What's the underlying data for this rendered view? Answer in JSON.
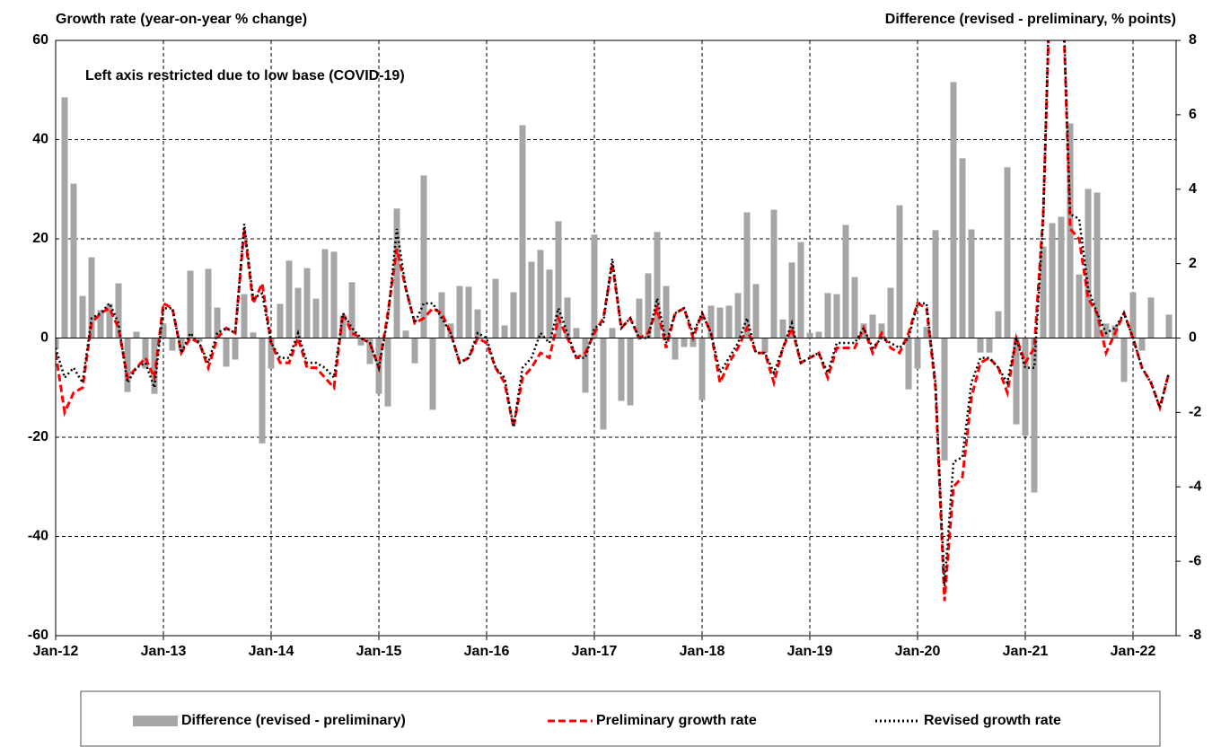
{
  "chart_data": {
    "type": "bar_line",
    "y_title": "Growth rate (year-on-year % change)",
    "y2_title": "Difference (revised - preliminary, % points)",
    "annotation": "Left axis restricted due to low base (COVID-19)",
    "categories": [
      "Jan-12",
      null,
      null,
      null,
      null,
      null,
      null,
      null,
      null,
      null,
      null,
      null,
      "Jan-13",
      null,
      null,
      null,
      null,
      null,
      null,
      null,
      null,
      null,
      null,
      null,
      "Jan-14",
      null,
      null,
      null,
      null,
      null,
      null,
      null,
      null,
      null,
      null,
      null,
      "Jan-15",
      null,
      null,
      null,
      null,
      null,
      null,
      null,
      null,
      null,
      null,
      null,
      "Jan-16",
      null,
      null,
      null,
      null,
      null,
      null,
      null,
      null,
      null,
      null,
      null,
      "Jan-17",
      null,
      null,
      null,
      null,
      null,
      null,
      null,
      null,
      null,
      null,
      null,
      "Jan-18",
      null,
      null,
      null,
      null,
      null,
      null,
      null,
      null,
      null,
      null,
      null,
      "Jan-19",
      null,
      null,
      null,
      null,
      null,
      null,
      null,
      null,
      null,
      null,
      null,
      "Jan-20",
      null,
      null,
      null,
      null,
      null,
      null,
      null,
      null,
      null,
      null,
      null,
      "Jan-21",
      null,
      null,
      null,
      null,
      null,
      null,
      null,
      null,
      null,
      null,
      null,
      "Jan-22",
      null,
      null,
      null,
      null
    ],
    "series": [
      {
        "name": "Difference (revised - preliminary)",
        "type": "bar",
        "axis": "y2",
        "color": "#a6a6a6",
        "values": [
          -0.3,
          6.47,
          4.15,
          1.13,
          2.17,
          0.75,
          0.92,
          1.47,
          -1.45,
          0.17,
          -0.82,
          -1.5,
          0.39,
          -0.34,
          -0.34,
          1.81,
          -0.1,
          1.86,
          0.82,
          -0.77,
          -0.58,
          1.18,
          0.15,
          -2.83,
          -0.82,
          0.92,
          2.08,
          1.35,
          1.88,
          1.06,
          2.39,
          2.32,
          0.6,
          1.5,
          -0.2,
          -0.7,
          -1.5,
          -1.84,
          3.48,
          0.2,
          -0.68,
          4.37,
          -1.93,
          1.23,
          0.39,
          1.4,
          1.38,
          0.77,
          0,
          1.59,
          0.34,
          1.23,
          5.72,
          2.05,
          2.37,
          1.84,
          3.14,
          1.09,
          0.27,
          -1.47,
          2.78,
          -2.46,
          0.27,
          -1.69,
          -1.81,
          1.06,
          1.74,
          2.85,
          1.4,
          -0.58,
          -0.24,
          -0.24,
          -1.67,
          0.87,
          0.82,
          0.87,
          1.21,
          3.38,
          1.45,
          -0.39,
          3.45,
          0.5,
          2.03,
          2.58,
          0.14,
          0.17,
          1.21,
          1.18,
          3.04,
          1.64,
          0.39,
          0.63,
          0.39,
          1.35,
          3.57,
          -1.38,
          -0.82,
          0.3,
          2.9,
          -3.29,
          6.88,
          4.83,
          2.92,
          -0.39,
          -0.39,
          0.72,
          4.59,
          -2.32,
          -2.63,
          -4.15,
          2.46,
          3.09,
          3.26,
          5.77,
          1.71,
          4.01,
          3.91,
          0.39,
          0.34,
          -1.18,
          1.23,
          -0.34,
          1.09,
          0,
          0.63
        ]
      },
      {
        "name": "Preliminary growth rate",
        "type": "line",
        "dash": "dashed",
        "color": "#ff0000",
        "values": [
          -3,
          -15,
          -11,
          -10,
          3,
          5,
          6,
          2,
          -8,
          -6,
          -4,
          -8,
          7,
          6,
          -3,
          0,
          -1,
          -6,
          0,
          2,
          1,
          22,
          7,
          11,
          -1,
          -5,
          -5,
          0,
          -6,
          -6,
          -8,
          -10,
          5,
          1,
          0,
          -1,
          -6,
          5,
          18,
          10,
          3,
          4,
          6,
          5,
          1,
          -5,
          -4,
          0,
          -1,
          -6,
          -9,
          -18,
          -8,
          -6,
          -3,
          -4,
          4,
          0,
          -4,
          -3,
          1,
          4,
          15,
          2,
          4,
          0,
          1,
          6,
          -2,
          5,
          6,
          0,
          5,
          1,
          -9,
          -5,
          -2,
          2,
          -3,
          -3,
          -9,
          -2,
          2,
          -5,
          -4,
          -3,
          -8,
          -2,
          -2,
          -2,
          2,
          -3,
          1,
          -2,
          -3,
          1,
          7,
          6,
          -10,
          -53,
          -30,
          -28,
          -12,
          -5,
          -4,
          -6,
          -11,
          0,
          -5,
          -2,
          25,
          85,
          80,
          22,
          20,
          8,
          5,
          -3,
          1,
          5,
          0,
          -6,
          -9,
          -14,
          -7
        ]
      },
      {
        "name": "Revised growth rate",
        "type": "line",
        "dash": "dotted",
        "color": "#000000",
        "values": [
          -2,
          -8,
          -6,
          -9,
          4,
          5,
          7,
          3,
          -9,
          -6,
          -5,
          -10,
          6,
          6,
          -3,
          1,
          -1,
          -5,
          1,
          2,
          1,
          23,
          8,
          9,
          -1,
          -4,
          -4,
          1,
          -5,
          -5,
          -6,
          -8,
          5,
          2,
          0,
          -1,
          -6,
          4,
          22,
          10,
          3,
          7,
          7,
          4,
          1,
          -5,
          -4,
          1,
          0,
          -6,
          -8,
          -18,
          -6,
          -4,
          1,
          -1,
          6,
          1,
          -4,
          -4,
          2,
          3,
          16,
          2,
          4,
          0,
          0,
          8,
          -1,
          5,
          6,
          1,
          5,
          1,
          -7,
          -4,
          -1,
          4,
          -3,
          -3,
          -7,
          -2,
          3,
          -5,
          -4,
          -3,
          -7,
          -1,
          -1,
          -1,
          2,
          -2,
          0,
          -1,
          -2,
          0,
          7,
          7,
          -9,
          -50,
          -25,
          -24,
          -9,
          -4,
          -4,
          -6,
          -9,
          0,
          -6,
          -6,
          24,
          90,
          80,
          25,
          24,
          10,
          5,
          1,
          2,
          5,
          0,
          -6,
          -9,
          -14,
          -7
        ]
      }
    ],
    "ylim": [
      -60,
      60
    ],
    "yticks": [
      -60,
      -40,
      -20,
      0,
      20,
      40,
      60
    ],
    "y2lim": [
      -8,
      8
    ],
    "y2ticks": [
      -8,
      -6,
      -4,
      -2,
      0,
      2,
      4,
      6,
      8
    ],
    "grid": true,
    "legend": "bottom"
  }
}
